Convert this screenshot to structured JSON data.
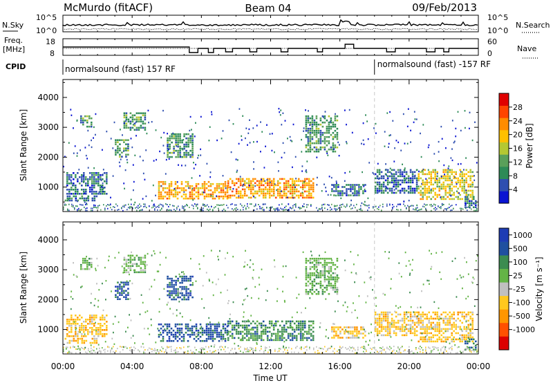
{
  "header": {
    "station": "McMurdo (fitACF)",
    "beam": "Beam 04",
    "date": "09/Feb/2013"
  },
  "aux_panels": {
    "nsky_label": "N.Sky",
    "nsky_ticks": [
      "10^5",
      "10^0"
    ],
    "nsearch_label": "N.Search",
    "freq_label_1": "Freq.",
    "freq_label_2": "[MHz]",
    "freq_ticks": [
      "18",
      "8"
    ],
    "nave_ticks": [
      "60",
      "0"
    ],
    "nave_label": "Nave",
    "cpid_label": "CPID",
    "cpid_segments": [
      "normalsound (fast) 157 RF",
      "normalsound (fast) -157 RF"
    ],
    "cpid_change_hour": 18
  },
  "colors": {
    "power_scale": [
      "#0a14d2",
      "#2f4fb0",
      "#2e8b57",
      "#5aa05a",
      "#b5c832",
      "#ffc000",
      "#ff8c00",
      "#ff4500",
      "#e00000"
    ],
    "velocity_scale": [
      "#1e3cb4",
      "#2050a0",
      "#3c8c50",
      "#64b446",
      "#c0c0c0",
      "#ffc81e",
      "#ff9600",
      "#ff5000",
      "#dc0000"
    ],
    "ground_scatter": "#bebebe"
  },
  "chart_data": [
    {
      "type": "heatmap",
      "name": "Power",
      "xlabel": "",
      "ylabel": "Slant Range [km]",
      "xlim": [
        0,
        24
      ],
      "ylim": [
        180,
        4600
      ],
      "yticks": [
        1000,
        2000,
        3000,
        4000
      ],
      "colorbar": {
        "label": "Power [dB]",
        "range": [
          0,
          32
        ],
        "ticks": [
          4,
          8,
          12,
          16,
          20,
          24,
          28
        ]
      },
      "regions": [
        {
          "x": [
            0.1,
            2.0
          ],
          "y": [
            560,
            720
          ],
          "level": 8
        },
        {
          "x": [
            0.2,
            2.5
          ],
          "y": [
            800,
            1500
          ],
          "level": 8
        },
        {
          "x": [
            1.0,
            1.6
          ],
          "y": [
            3000,
            3400
          ],
          "level": 12
        },
        {
          "x": [
            3.0,
            3.8
          ],
          "y": [
            2000,
            2600
          ],
          "level": 12
        },
        {
          "x": [
            3.5,
            4.7
          ],
          "y": [
            2900,
            3500
          ],
          "level": 12
        },
        {
          "x": [
            5.5,
            9.5
          ],
          "y": [
            600,
            1200
          ],
          "level": 24
        },
        {
          "x": [
            6.0,
            7.5
          ],
          "y": [
            2000,
            2800
          ],
          "level": 12
        },
        {
          "x": [
            9.5,
            14.5
          ],
          "y": [
            650,
            1300
          ],
          "level": 24
        },
        {
          "x": [
            14.0,
            15.8
          ],
          "y": [
            2200,
            3400
          ],
          "level": 12
        },
        {
          "x": [
            15.5,
            17.5
          ],
          "y": [
            700,
            1100
          ],
          "level": 8
        },
        {
          "x": [
            18.0,
            20.5
          ],
          "y": [
            800,
            1600
          ],
          "level": 8
        },
        {
          "x": [
            20.5,
            23.7
          ],
          "y": [
            600,
            1600
          ],
          "level": 20
        },
        {
          "x": [
            23.2,
            23.9
          ],
          "y": [
            300,
            700
          ],
          "level": 8
        }
      ]
    },
    {
      "type": "heatmap",
      "name": "Velocity",
      "xlabel": "Time UT",
      "ylabel": "Slant Range [km]",
      "xlim": [
        0,
        24
      ],
      "ylim": [
        180,
        4600
      ],
      "xticks": [
        "00:00",
        "04:00",
        "08:00",
        "12:00",
        "16:00",
        "20:00",
        "00:00"
      ],
      "yticks": [
        1000,
        2000,
        3000,
        4000
      ],
      "colorbar": {
        "label": "Velocity [m s⁻¹]",
        "ticks": [
          "1000",
          "500",
          "100",
          "25",
          "-25",
          "-100",
          "-500",
          "-1000"
        ]
      },
      "regions": [
        {
          "x": [
            0.1,
            2.0
          ],
          "y": [
            560,
            720
          ],
          "level": -100
        },
        {
          "x": [
            0.2,
            2.5
          ],
          "y": [
            800,
            1500
          ],
          "level": -100
        },
        {
          "x": [
            1.0,
            1.6
          ],
          "y": [
            3000,
            3400
          ],
          "level": 25
        },
        {
          "x": [
            3.0,
            3.8
          ],
          "y": [
            2000,
            2600
          ],
          "level": 500
        },
        {
          "x": [
            3.5,
            4.7
          ],
          "y": [
            2900,
            3500
          ],
          "level": 25
        },
        {
          "x": [
            5.5,
            9.5
          ],
          "y": [
            600,
            1200
          ],
          "level": 500
        },
        {
          "x": [
            6.0,
            7.5
          ],
          "y": [
            2000,
            2800
          ],
          "level": 500
        },
        {
          "x": [
            9.5,
            14.5
          ],
          "y": [
            650,
            1300
          ],
          "level": 100
        },
        {
          "x": [
            14.0,
            15.8
          ],
          "y": [
            2200,
            3400
          ],
          "level": 25
        },
        {
          "x": [
            15.5,
            17.5
          ],
          "y": [
            700,
            1100
          ],
          "level": -100
        },
        {
          "x": [
            18.0,
            20.5
          ],
          "y": [
            800,
            1600
          ],
          "level": -100
        },
        {
          "x": [
            20.5,
            23.7
          ],
          "y": [
            600,
            1600
          ],
          "level": -100
        },
        {
          "x": [
            23.2,
            23.9
          ],
          "y": [
            300,
            700
          ],
          "level": 100
        }
      ]
    }
  ]
}
